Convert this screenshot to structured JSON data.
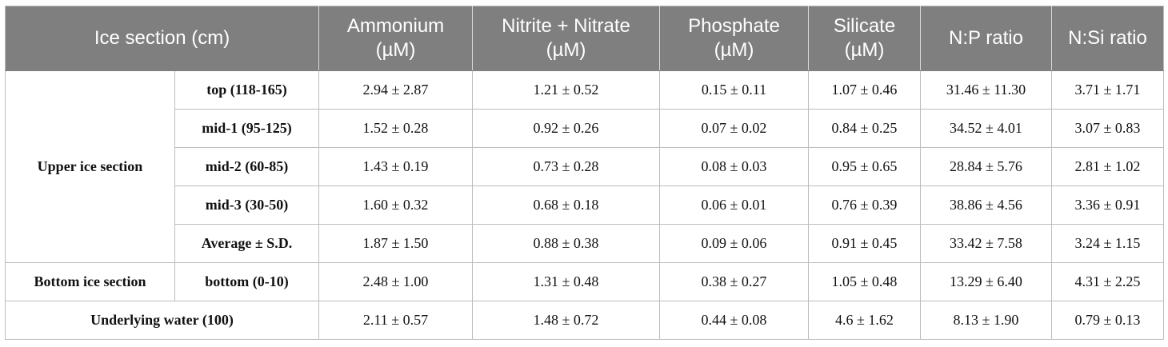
{
  "header": {
    "section": "Ice section (cm)",
    "ammonium": [
      "Ammonium",
      "(µM)"
    ],
    "nitrite_nitrate": [
      "Nitrite + Nitrate",
      "(µM)"
    ],
    "phosphate": [
      "Phosphate",
      "(µM)"
    ],
    "silicate": [
      "Silicate",
      "(µM)"
    ],
    "np_ratio": "N:P ratio",
    "nsi_ratio": "N:Si ratio"
  },
  "groups": {
    "upper": "Upper ice section",
    "bottom": "Bottom ice section",
    "water": "Underlying water (100)"
  },
  "rows": [
    {
      "label": "top (118-165)",
      "values": [
        "2.94 ± 2.87",
        "1.21 ± 0.52",
        "0.15 ± 0.11",
        "1.07 ± 0.46",
        "31.46 ± 11.30",
        "3.71 ± 1.71"
      ]
    },
    {
      "label": "mid-1 (95-125)",
      "values": [
        "1.52 ± 0.28",
        "0.92 ± 0.26",
        "0.07 ± 0.02",
        "0.84 ± 0.25",
        "34.52 ± 4.01",
        "3.07 ± 0.83"
      ]
    },
    {
      "label": "mid-2 (60-85)",
      "values": [
        "1.43 ± 0.19",
        "0.73 ± 0.28",
        "0.08 ± 0.03",
        "0.95 ± 0.65",
        "28.84 ± 5.76",
        "2.81 ± 1.02"
      ]
    },
    {
      "label": "mid-3 (30-50)",
      "values": [
        "1.60 ± 0.32",
        "0.68 ± 0.18",
        "0.06 ± 0.01",
        "0.76 ± 0.39",
        "38.86 ± 4.56",
        "3.36 ± 0.91"
      ]
    },
    {
      "label": "Average ± S.D.",
      "values": [
        "1.87 ± 1.50",
        "0.88 ± 0.38",
        "0.09 ± 0.06",
        "0.91 ± 0.45",
        "33.42 ± 7.58",
        "3.24 ± 1.15"
      ]
    },
    {
      "label": "bottom (0-10)",
      "values": [
        "2.48 ± 1.00",
        "1.31 ± 0.48",
        "0.38 ± 0.27",
        "1.05 ± 0.48",
        "13.29 ± 6.40",
        "4.31 ± 2.25"
      ]
    },
    {
      "label": "",
      "values": [
        "2.11 ± 0.57",
        "1.48 ± 0.72",
        "0.44 ± 0.08",
        "4.6 ± 1.62",
        "8.13 ± 1.90",
        "0.79 ± 0.13"
      ]
    }
  ]
}
